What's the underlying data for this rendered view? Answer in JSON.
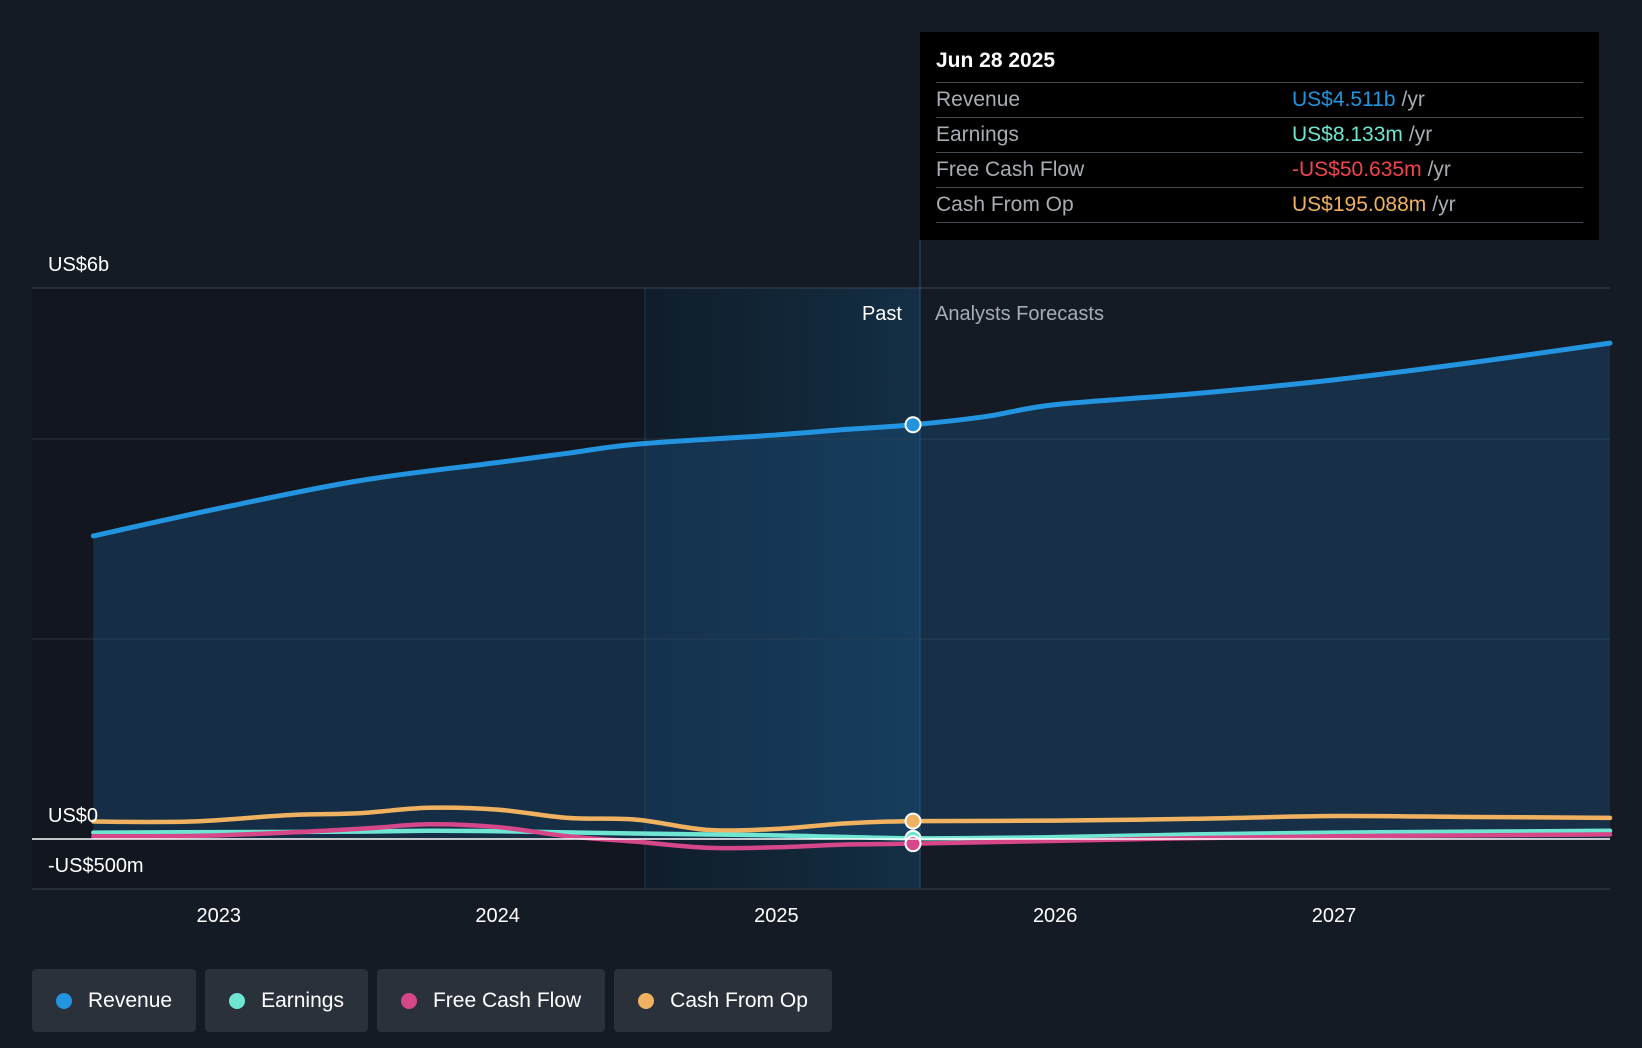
{
  "tooltip": {
    "date": "Jun 28 2025",
    "rows": [
      {
        "label": "Revenue",
        "value": "US$4.511b",
        "unit": "/yr",
        "color": "#2394df"
      },
      {
        "label": "Earnings",
        "value": "US$8.133m",
        "unit": "/yr",
        "color": "#6ee6d2"
      },
      {
        "label": "Free Cash Flow",
        "value": "-US$50.635m",
        "unit": "/yr",
        "color": "#f2444f"
      },
      {
        "label": "Cash From Op",
        "value": "US$195.088m",
        "unit": "/yr",
        "color": "#f0b260"
      }
    ]
  },
  "legend": [
    {
      "label": "Revenue",
      "color": "#2394df"
    },
    {
      "label": "Earnings",
      "color": "#6ee6d2"
    },
    {
      "label": "Free Cash Flow",
      "color": "#d6478a"
    },
    {
      "label": "Cash From Op",
      "color": "#f0b260"
    }
  ],
  "chart_data": {
    "type": "line",
    "y_tick_labels": [
      "US$6b",
      "US$0",
      "-US$500m"
    ],
    "x_tick_labels": [
      "2023",
      "2024",
      "2025",
      "2026",
      "2027"
    ],
    "region_labels": {
      "past": "Past",
      "forecast": "Analysts Forecasts"
    },
    "ylim": [
      -500,
      6000
    ],
    "xlim": [
      2022.33,
      2027.99
    ],
    "current_x": 2025.49,
    "series": [
      {
        "name": "Revenue",
        "color": "#2394df",
        "x": [
          2022.55,
          2023.0,
          2023.5,
          2024.0,
          2024.25,
          2024.5,
          2025.0,
          2025.25,
          2025.49,
          2025.75,
          2026.0,
          2026.5,
          2027.0,
          2027.5,
          2027.99
        ],
        "values": [
          3300,
          3600,
          3900,
          4100,
          4200,
          4300,
          4400,
          4460,
          4511,
          4600,
          4730,
          4850,
          5000,
          5190,
          5400
        ]
      },
      {
        "name": "Earnings",
        "color": "#6ee6d2",
        "x": [
          2022.55,
          2023.0,
          2023.5,
          2023.75,
          2024.0,
          2024.5,
          2025.0,
          2025.49,
          2026.0,
          2026.5,
          2027.0,
          2027.5,
          2027.99
        ],
        "values": [
          70,
          75,
          80,
          90,
          85,
          60,
          40,
          8,
          20,
          50,
          70,
          80,
          90
        ]
      },
      {
        "name": "Free Cash Flow",
        "color": "#d6478a",
        "x": [
          2022.55,
          2023.0,
          2023.5,
          2023.75,
          2024.0,
          2024.25,
          2024.5,
          2024.75,
          2025.0,
          2025.25,
          2025.49,
          2026.0,
          2026.5,
          2027.0,
          2027.5,
          2027.99
        ],
        "values": [
          30,
          40,
          110,
          160,
          130,
          30,
          -30,
          -95,
          -90,
          -60,
          -51,
          -20,
          10,
          30,
          40,
          50
        ]
      },
      {
        "name": "Cash From Op",
        "color": "#f0b260",
        "x": [
          2022.55,
          2022.9,
          2023.25,
          2023.5,
          2023.75,
          2024.0,
          2024.25,
          2024.5,
          2024.75,
          2025.0,
          2025.25,
          2025.49,
          2026.0,
          2026.5,
          2027.0,
          2027.5,
          2027.99
        ],
        "values": [
          190,
          190,
          260,
          280,
          340,
          320,
          230,
          210,
          100,
          110,
          170,
          195,
          200,
          220,
          250,
          240,
          230
        ]
      }
    ]
  }
}
